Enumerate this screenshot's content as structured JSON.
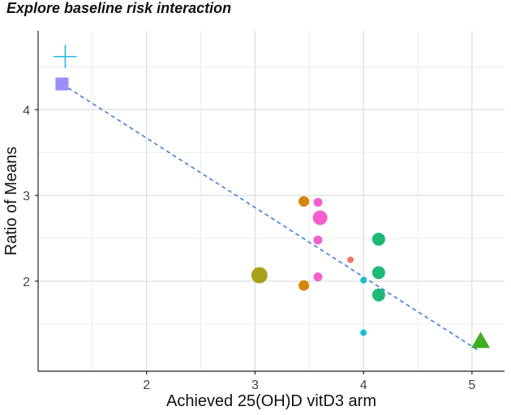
{
  "chart_data": {
    "type": "scatter",
    "title": "Explore baseline risk interaction",
    "xlabel": "Achieved 25(OH)D vitD3 arm",
    "ylabel": "Ratio of Means",
    "xlim": [
      1.0,
      5.3
    ],
    "ylim": [
      0.95,
      4.92
    ],
    "xticks": [
      2,
      3,
      4,
      5
    ],
    "yticks": [
      2,
      3,
      4
    ],
    "grid": true,
    "points": [
      {
        "x": 1.25,
        "y": 4.62,
        "shape": "cross",
        "color": "#22b8e6",
        "size": 11
      },
      {
        "x": 1.22,
        "y": 4.3,
        "shape": "square",
        "color": "#9b8ff5",
        "size": 8
      },
      {
        "x": 3.04,
        "y": 2.07,
        "shape": "circle",
        "color": "#a6a21a",
        "size": 10
      },
      {
        "x": 3.45,
        "y": 2.93,
        "shape": "circle",
        "color": "#d4860b",
        "size": 6.5
      },
      {
        "x": 3.45,
        "y": 1.95,
        "shape": "circle",
        "color": "#d4860b",
        "size": 6.5
      },
      {
        "x": 3.58,
        "y": 2.92,
        "shape": "circle",
        "color": "#f45fd0",
        "size": 5.5
      },
      {
        "x": 3.6,
        "y": 2.74,
        "shape": "circle",
        "color": "#f45fd0",
        "size": 9
      },
      {
        "x": 3.58,
        "y": 2.48,
        "shape": "circle",
        "color": "#f45fd0",
        "size": 5.5
      },
      {
        "x": 3.58,
        "y": 2.05,
        "shape": "circle",
        "color": "#f45fd0",
        "size": 5.5
      },
      {
        "x": 3.88,
        "y": 2.25,
        "shape": "circle",
        "color": "#f2736b",
        "size": 4
      },
      {
        "x": 4.0,
        "y": 2.01,
        "shape": "circle",
        "color": "#1cbfcf",
        "size": 4
      },
      {
        "x": 4.0,
        "y": 1.4,
        "shape": "circle",
        "color": "#1cbfcf",
        "size": 4
      },
      {
        "x": 4.14,
        "y": 2.49,
        "shape": "circle",
        "color": "#1fb878",
        "size": 8
      },
      {
        "x": 4.14,
        "y": 2.1,
        "shape": "circle",
        "color": "#1fb878",
        "size": 8
      },
      {
        "x": 4.14,
        "y": 1.84,
        "shape": "circle",
        "color": "#1fb878",
        "size": 8
      },
      {
        "x": 5.08,
        "y": 1.3,
        "shape": "triangle",
        "color": "#3fae1f",
        "size": 11
      }
    ],
    "trendline": {
      "x": [
        1.22,
        5.05
      ],
      "y": [
        4.3,
        1.2
      ],
      "color": "#3d7de0",
      "style": "dashed"
    }
  }
}
